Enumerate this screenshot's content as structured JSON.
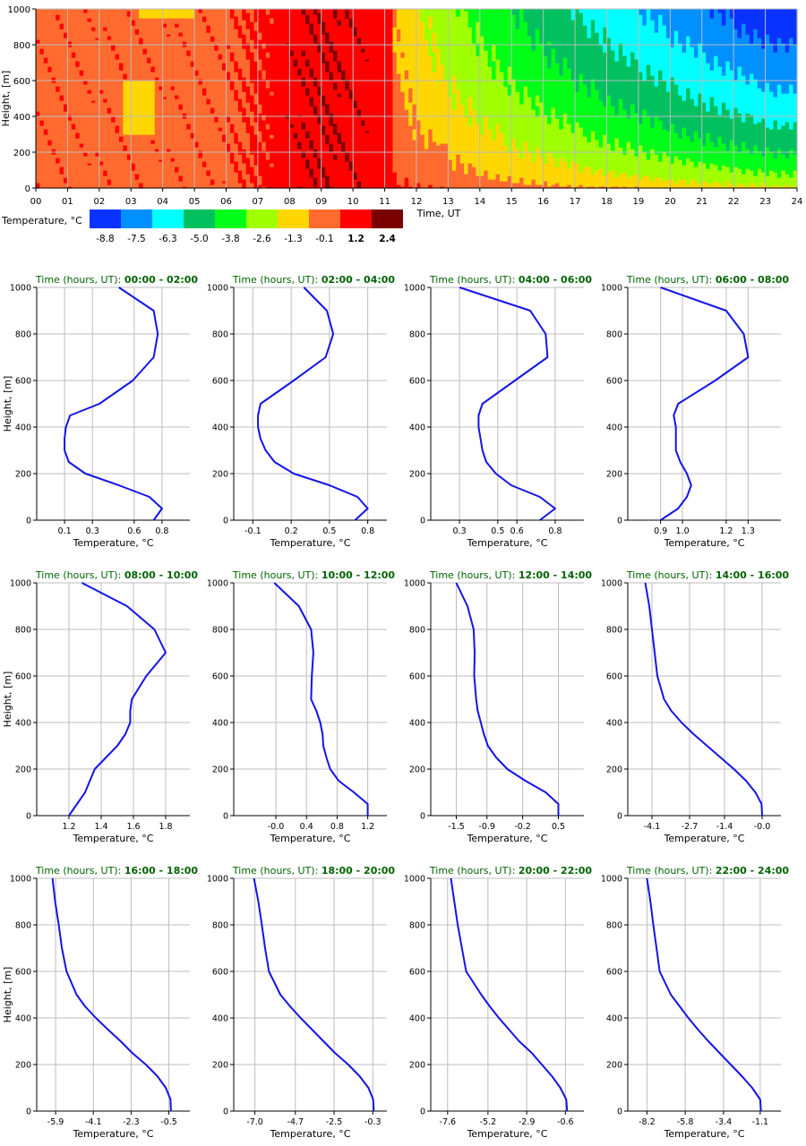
{
  "chart_data": [
    {
      "type": "heatmap",
      "ylabel": "Height, [m]",
      "xlabel": "Time, UT",
      "y_ticks": [
        0,
        200,
        400,
        600,
        800,
        1000
      ],
      "x_ticks": [
        "00",
        "01",
        "02",
        "03",
        "04",
        "05",
        "06",
        "07",
        "08",
        "09",
        "10",
        "11",
        "12",
        "13",
        "14",
        "15",
        "16",
        "17",
        "18",
        "19",
        "20",
        "21",
        "22",
        "23",
        "24"
      ],
      "xlim": [
        0,
        24
      ],
      "ylim": [
        0,
        1000
      ],
      "colorbar": {
        "label": "Temperature, °C",
        "tick_labels": [
          "-8.8",
          "-7.5",
          "-6.3",
          "-5.0",
          "-3.8",
          "-2.6",
          "-1.3",
          "-0.1",
          "1.2",
          "2.4"
        ],
        "colors": [
          "#0a32ff",
          "#0090ff",
          "#00ffff",
          "#00c060",
          "#00ff18",
          "#a0ff00",
          "#ffd700",
          "#ff6a2e",
          "#ff0000",
          "#7a0000"
        ]
      },
      "grid": true
    },
    {
      "type": "line",
      "title_prefix": "Time (hours, UT): ",
      "title_range": "00:00 - 02:00",
      "xlabel": "Temperature, °C",
      "ylabel": "Height, [m]",
      "xlim": [
        -0.1,
        1.0
      ],
      "ylim": [
        0,
        1000
      ],
      "x_ticks": [
        0.1,
        0.3,
        0.6,
        0.8
      ],
      "x_tick_labels": [
        "0.1",
        "0.3",
        "0.6",
        "0.8"
      ],
      "y_ticks": [
        0,
        200,
        400,
        600,
        800,
        1000
      ],
      "series": [
        {
          "name": "profile",
          "x": [
            0.74,
            0.8,
            0.71,
            0.49,
            0.25,
            0.13,
            0.1,
            0.1,
            0.11,
            0.14,
            0.35,
            0.59,
            0.74,
            0.77,
            0.74,
            0.49
          ],
          "y": [
            0,
            50,
            100,
            150,
            200,
            250,
            300,
            350,
            400,
            450,
            500,
            600,
            700,
            800,
            900,
            1000
          ]
        }
      ]
    },
    {
      "type": "line",
      "title_prefix": "Time (hours, UT): ",
      "title_range": "02:00 - 04:00",
      "xlabel": "Temperature, °C",
      "ylabel": "",
      "xlim": [
        -0.25,
        0.95
      ],
      "ylim": [
        0,
        1000
      ],
      "x_ticks": [
        -0.1,
        0.2,
        0.5,
        0.8
      ],
      "x_tick_labels": [
        "-0.1",
        "0.2",
        "0.5",
        "0.8"
      ],
      "y_ticks": [
        0,
        200,
        400,
        600,
        800,
        1000
      ],
      "series": [
        {
          "name": "profile",
          "x": [
            0.7,
            0.8,
            0.72,
            0.5,
            0.22,
            0.07,
            0.0,
            -0.04,
            -0.06,
            -0.06,
            -0.04,
            0.22,
            0.47,
            0.53,
            0.48,
            0.3
          ],
          "y": [
            0,
            50,
            100,
            150,
            200,
            250,
            300,
            350,
            400,
            450,
            500,
            600,
            700,
            800,
            900,
            1000
          ]
        }
      ]
    },
    {
      "type": "line",
      "title_prefix": "Time (hours, UT): ",
      "title_range": "04:00 - 06:00",
      "xlabel": "Temperature, °C",
      "ylabel": "",
      "xlim": [
        0.15,
        0.95
      ],
      "ylim": [
        0,
        1000
      ],
      "x_ticks": [
        0.3,
        0.5,
        0.6,
        0.8
      ],
      "x_tick_labels": [
        "0.3",
        "0.5",
        "0.6",
        "0.8"
      ],
      "y_ticks": [
        0,
        200,
        400,
        600,
        800,
        1000
      ],
      "series": [
        {
          "name": "profile",
          "x": [
            0.72,
            0.8,
            0.72,
            0.57,
            0.49,
            0.44,
            0.42,
            0.41,
            0.4,
            0.4,
            0.42,
            0.59,
            0.76,
            0.75,
            0.67,
            0.3
          ],
          "y": [
            0,
            50,
            100,
            150,
            200,
            250,
            300,
            350,
            400,
            450,
            500,
            600,
            700,
            800,
            900,
            1000
          ]
        }
      ]
    },
    {
      "type": "line",
      "title_prefix": "Time (hours, UT): ",
      "title_range": "06:00 - 08:00",
      "xlabel": "Temperature, °C",
      "ylabel": "",
      "xlim": [
        0.75,
        1.45
      ],
      "ylim": [
        0,
        1000
      ],
      "x_ticks": [
        0.9,
        1.0,
        1.2,
        1.3
      ],
      "x_tick_labels": [
        "0.9",
        "1.0",
        "1.2",
        "1.3"
      ],
      "y_ticks": [
        0,
        200,
        400,
        600,
        800,
        1000
      ],
      "series": [
        {
          "name": "profile",
          "x": [
            0.9,
            0.98,
            1.02,
            1.04,
            1.02,
            0.99,
            0.97,
            0.97,
            0.97,
            0.96,
            0.98,
            1.15,
            1.3,
            1.28,
            1.2,
            0.9
          ],
          "y": [
            0,
            50,
            100,
            150,
            200,
            250,
            300,
            350,
            400,
            450,
            500,
            600,
            700,
            800,
            900,
            1000
          ]
        }
      ]
    },
    {
      "type": "line",
      "title_prefix": "Time (hours, UT): ",
      "title_range": "08:00 - 10:00",
      "xlabel": "Temperature, °C",
      "ylabel": "Height, [m]",
      "xlim": [
        1.0,
        1.95
      ],
      "ylim": [
        0,
        1000
      ],
      "x_ticks": [
        1.2,
        1.4,
        1.6,
        1.8
      ],
      "x_tick_labels": [
        "1.2",
        "1.4",
        "1.6",
        "1.8"
      ],
      "y_ticks": [
        0,
        200,
        400,
        600,
        800,
        1000
      ],
      "series": [
        {
          "name": "profile",
          "x": [
            1.2,
            1.25,
            1.3,
            1.33,
            1.36,
            1.43,
            1.5,
            1.55,
            1.58,
            1.58,
            1.59,
            1.68,
            1.8,
            1.73,
            1.56,
            1.28
          ],
          "y": [
            0,
            50,
            100,
            150,
            200,
            250,
            300,
            350,
            400,
            450,
            500,
            600,
            700,
            800,
            900,
            1000
          ]
        }
      ]
    },
    {
      "type": "line",
      "title_prefix": "Time (hours, UT): ",
      "title_range": "10:00 - 12:00",
      "xlabel": "Temperature, °C",
      "ylabel": "",
      "xlim": [
        -0.55,
        1.45
      ],
      "ylim": [
        0,
        1000
      ],
      "x_ticks": [
        0.0,
        0.4,
        0.8,
        1.2
      ],
      "x_tick_labels": [
        "-0.0",
        "0.4",
        "0.8",
        "1.2"
      ],
      "y_ticks": [
        0,
        200,
        400,
        600,
        800,
        1000
      ],
      "series": [
        {
          "name": "profile",
          "x": [
            1.2,
            1.2,
            1.02,
            0.82,
            0.71,
            0.66,
            0.62,
            0.61,
            0.58,
            0.53,
            0.46,
            0.47,
            0.49,
            0.46,
            0.3,
            -0.02
          ],
          "y": [
            0,
            50,
            100,
            150,
            200,
            250,
            300,
            350,
            400,
            450,
            500,
            600,
            700,
            800,
            900,
            1000
          ]
        }
      ]
    },
    {
      "type": "line",
      "title_prefix": "Time (hours, UT): ",
      "title_range": "12:00 - 14:00",
      "xlabel": "Temperature, °C",
      "ylabel": "",
      "xlim": [
        -2.0,
        1.0
      ],
      "ylim": [
        0,
        1000
      ],
      "x_ticks": [
        -1.5,
        -0.9,
        -0.2,
        0.5
      ],
      "x_tick_labels": [
        "-1.5",
        "-0.9",
        "-0.2",
        "0.5"
      ],
      "y_ticks": [
        0,
        200,
        400,
        600,
        800,
        1000
      ],
      "series": [
        {
          "name": "profile",
          "x": [
            0.5,
            0.5,
            0.25,
            -0.15,
            -0.5,
            -0.72,
            -0.88,
            -0.96,
            -1.02,
            -1.08,
            -1.11,
            -1.15,
            -1.14,
            -1.16,
            -1.28,
            -1.5
          ],
          "y": [
            0,
            50,
            100,
            150,
            200,
            250,
            300,
            350,
            400,
            450,
            500,
            600,
            700,
            800,
            900,
            1000
          ]
        }
      ]
    },
    {
      "type": "line",
      "title_prefix": "Time (hours, UT): ",
      "title_range": "14:00 - 16:00",
      "xlabel": "Temperature, °C",
      "ylabel": "",
      "xlim": [
        -5.0,
        0.7
      ],
      "ylim": [
        0,
        1000
      ],
      "x_ticks": [
        -4.1,
        -2.7,
        -1.4,
        0.0
      ],
      "x_tick_labels": [
        "-4.1",
        "-2.7",
        "-1.4",
        "-0.0"
      ],
      "y_ticks": [
        0,
        200,
        400,
        600,
        800,
        1000
      ],
      "series": [
        {
          "name": "profile",
          "x": [
            0.0,
            -0.02,
            -0.25,
            -0.6,
            -1.05,
            -1.55,
            -2.05,
            -2.55,
            -3.0,
            -3.38,
            -3.65,
            -3.9,
            -4.0,
            -4.1,
            -4.2,
            -4.35
          ],
          "y": [
            0,
            50,
            100,
            150,
            200,
            250,
            300,
            350,
            400,
            450,
            500,
            600,
            700,
            800,
            900,
            1000
          ]
        }
      ]
    },
    {
      "type": "line",
      "title_prefix": "Time (hours, UT): ",
      "title_range": "16:00 - 18:00",
      "xlabel": "Temperature, °C",
      "ylabel": "Height, [m]",
      "xlim": [
        -6.8,
        0.5
      ],
      "ylim": [
        0,
        1000
      ],
      "x_ticks": [
        -5.9,
        -4.1,
        -2.3,
        -0.5
      ],
      "x_tick_labels": [
        "-5.9",
        "-4.1",
        "-2.3",
        "-0.5"
      ],
      "y_ticks": [
        0,
        200,
        400,
        600,
        800,
        1000
      ],
      "series": [
        {
          "name": "profile",
          "x": [
            -0.4,
            -0.42,
            -0.65,
            -1.05,
            -1.6,
            -2.25,
            -2.8,
            -3.4,
            -3.98,
            -4.5,
            -4.9,
            -5.38,
            -5.6,
            -5.75,
            -5.92,
            -6.05
          ],
          "y": [
            0,
            50,
            100,
            150,
            200,
            250,
            300,
            350,
            400,
            450,
            500,
            600,
            700,
            800,
            900,
            1000
          ]
        }
      ]
    },
    {
      "type": "line",
      "title_prefix": "Time (hours, UT): ",
      "title_range": "18:00 - 20:00",
      "xlabel": "Temperature, °C",
      "ylabel": "",
      "xlim": [
        -8.2,
        0.5
      ],
      "ylim": [
        0,
        1000
      ],
      "x_ticks": [
        -7.0,
        -4.7,
        -2.5,
        -0.3
      ],
      "x_tick_labels": [
        "-7.0",
        "-4.7",
        "-2.5",
        "-0.3"
      ],
      "y_ticks": [
        0,
        200,
        400,
        600,
        800,
        1000
      ],
      "series": [
        {
          "name": "profile",
          "x": [
            -0.25,
            -0.28,
            -0.55,
            -1.05,
            -1.7,
            -2.45,
            -3.1,
            -3.75,
            -4.4,
            -5.0,
            -5.55,
            -6.2,
            -6.42,
            -6.6,
            -6.8,
            -7.05
          ],
          "y": [
            0,
            50,
            100,
            150,
            200,
            250,
            300,
            350,
            400,
            450,
            500,
            600,
            700,
            800,
            900,
            1000
          ]
        }
      ]
    },
    {
      "type": "line",
      "title_prefix": "Time (hours, UT): ",
      "title_range": "20:00 - 22:00",
      "xlabel": "Temperature, °C",
      "ylabel": "",
      "xlim": [
        -8.6,
        0.5
      ],
      "ylim": [
        0,
        1000
      ],
      "x_ticks": [
        -7.6,
        -5.2,
        -2.9,
        -0.6
      ],
      "x_tick_labels": [
        "-7.6",
        "-5.2",
        "-2.9",
        "-0.6"
      ],
      "y_ticks": [
        0,
        200,
        400,
        600,
        800,
        1000
      ],
      "series": [
        {
          "name": "profile",
          "x": [
            -0.5,
            -0.55,
            -0.9,
            -1.4,
            -2.0,
            -2.6,
            -3.35,
            -3.95,
            -4.55,
            -5.1,
            -5.6,
            -6.5,
            -6.75,
            -7.0,
            -7.2,
            -7.4
          ],
          "y": [
            0,
            50,
            100,
            150,
            200,
            250,
            300,
            350,
            400,
            450,
            500,
            600,
            700,
            800,
            900,
            1000
          ]
        }
      ]
    },
    {
      "type": "line",
      "title_prefix": "Time (hours, UT): ",
      "title_range": "22:00 - 24:00",
      "xlabel": "Temperature, °C",
      "ylabel": "",
      "xlim": [
        -9.4,
        0.2
      ],
      "ylim": [
        0,
        1000
      ],
      "x_ticks": [
        -8.2,
        -5.8,
        -3.4,
        -1.1
      ],
      "x_tick_labels": [
        "-8.2",
        "-5.8",
        "-3.4",
        "-1.1"
      ],
      "y_ticks": [
        0,
        200,
        400,
        600,
        800,
        1000
      ],
      "series": [
        {
          "name": "profile",
          "x": [
            -1.05,
            -1.1,
            -1.6,
            -2.25,
            -2.95,
            -3.65,
            -4.35,
            -5.0,
            -5.6,
            -6.15,
            -6.7,
            -7.4,
            -7.6,
            -7.8,
            -7.98,
            -8.2
          ],
          "y": [
            0,
            50,
            100,
            150,
            200,
            250,
            300,
            350,
            400,
            450,
            500,
            600,
            700,
            800,
            900,
            1000
          ]
        }
      ]
    }
  ]
}
